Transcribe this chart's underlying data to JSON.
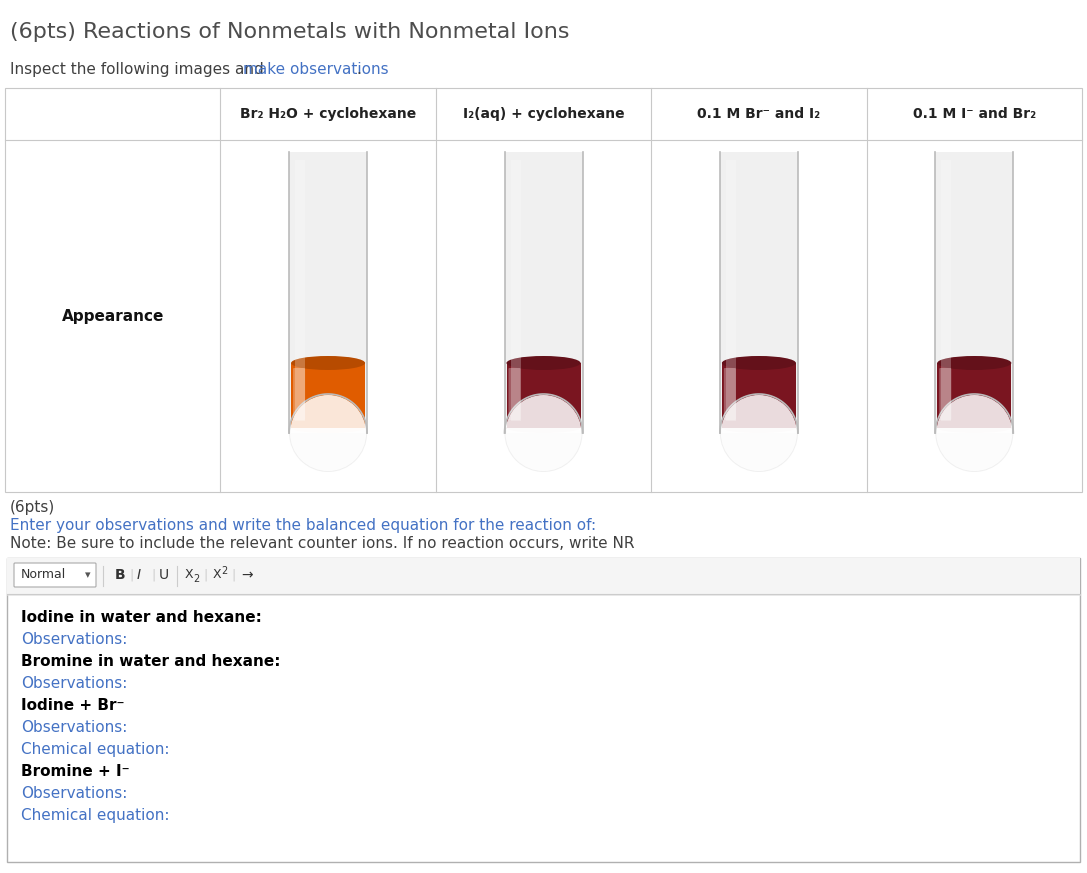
{
  "title": "(6pts) Reactions of Nonmetals with Nonmetal Ions",
  "title_color": "#4d4d4d",
  "subtitle_plain": "Inspect the following images and ",
  "subtitle_blue": "make observations",
  "subtitle_end": ".",
  "subtitle_color": "#404040",
  "subtitle_highlight_color": "#4472c4",
  "bg_color": "#ffffff",
  "table_border_color": "#c8c8c8",
  "col_headers": [
    "Br₂ H₂O + cyclohexane",
    "I₂(aq) + cyclohexane",
    "0.1 M Br⁻ and I₂",
    "0.1 M I⁻ and Br₂"
  ],
  "row_label": "Appearance",
  "liquid_colors": [
    "#e05c00",
    "#7a1520",
    "#7a1520",
    "#7a1520"
  ],
  "pts2_label": "(6pts)",
  "pts2_color": "#404040",
  "line1_text": "Enter your observations and write the balanced equation for the reaction of:",
  "line2_text": "Note: Be sure to include the relevant counter ions. If no reaction occurs, write NR",
  "line1_color": "#4472c4",
  "line2_color": "#404040",
  "editor_lines": [
    {
      "text": "Iodine in water and hexane:",
      "bold": true,
      "color": "#000000"
    },
    {
      "text": "Observations:",
      "bold": false,
      "color": "#4472c4"
    },
    {
      "text": "Bromine in water and hexane:",
      "bold": true,
      "color": "#000000"
    },
    {
      "text": "Observations:",
      "bold": false,
      "color": "#4472c4"
    },
    {
      "text": "Iodine + Br⁻",
      "bold": true,
      "color": "#000000"
    },
    {
      "text": "Observations:",
      "bold": false,
      "color": "#4472c4"
    },
    {
      "text": "Chemical equation:",
      "bold": false,
      "color": "#4472c4"
    },
    {
      "text": "Bromine + I⁻",
      "bold": true,
      "color": "#000000"
    },
    {
      "text": "Observations:",
      "bold": false,
      "color": "#4472c4"
    },
    {
      "text": "Chemical equation:",
      "bold": false,
      "color": "#4472c4"
    }
  ]
}
